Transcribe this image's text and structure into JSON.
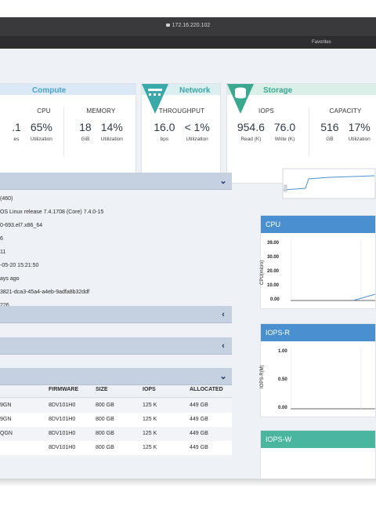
{
  "browser": {
    "url": "172.16.220.102",
    "favorites_label": "Favorites"
  },
  "colors": {
    "compute_accent": "#4aa3c8",
    "network_accent": "#3aa9a9",
    "storage_accent": "#3aa98f",
    "panel_bar": "#c5d1e0",
    "chart_blue": "#4a90d0",
    "chart_green": "#4bb6a0"
  },
  "cards": {
    "compute": {
      "title": "Compute",
      "icon": "chip-icon",
      "cpu": {
        "label": "CPU",
        "partial_value": ".1",
        "partial_unit": "es",
        "value": "65%",
        "unit": "Utilization"
      },
      "memory": {
        "label": "MEMORY",
        "value1": "18",
        "unit1": "GiB",
        "value2": "14%",
        "unit2": "Utilization"
      }
    },
    "network": {
      "title": "Network",
      "icon": "network-icon",
      "throughput": {
        "label": "THROUGHPUT",
        "value1": "16.0",
        "unit1": "bps",
        "value2": "< 1%",
        "unit2": "Utilization"
      }
    },
    "storage": {
      "title": "Storage",
      "icon": "database-icon",
      "iops": {
        "label": "IOPS",
        "value1": "954.6",
        "unit1": "Read (K)",
        "value2": "76.0",
        "unit2": "Write (K)"
      },
      "capacity": {
        "label": "CAPACITY",
        "value1": "516",
        "unit1": "GB",
        "value2": "17%",
        "unit2": "Utilization"
      }
    }
  },
  "info_lines": [
    "(460)",
    "OS Linux release 7.4.1708 (Core) 7.4.0-15",
    "0-693.el7.x86_64",
    "6",
    "11",
    "-05-20 15:21:50",
    "ays ago",
    "3821-dca3-45a4-a4eb-9adfa8b32ddf",
    "226"
  ],
  "drives_table": {
    "headers": [
      "FIRMWARE",
      "SIZE",
      "IOPS",
      "ALLOCATED"
    ],
    "rows": [
      {
        "prefix": "9GN",
        "firmware": "8DV101H0",
        "size": "800 GB",
        "iops": "125 K",
        "allocated": "449 GB"
      },
      {
        "prefix": "9GN",
        "firmware": "8DV101H0",
        "size": "800 GB",
        "iops": "125 K",
        "allocated": "449 GB"
      },
      {
        "prefix": "QGN",
        "firmware": "8DV101H0",
        "size": "800 GB",
        "iops": "125 K",
        "allocated": "449 GB"
      },
      {
        "prefix": "",
        "firmware": "8DV101H0",
        "size": "800 GB",
        "iops": "125 K",
        "allocated": "449 GB"
      }
    ]
  },
  "charts": {
    "cpu": {
      "title": "CPU",
      "ylabel": "CPU(micro)",
      "ticks": [
        "39.00",
        "30.00",
        "20.00",
        "10.00",
        "0.00"
      ]
    },
    "iops_r": {
      "title": "IOPS-R",
      "ylabel": "IOPS-R(M)",
      "ticks": [
        "1.00",
        "0.50",
        "0.00"
      ]
    },
    "iops_w": {
      "title": "IOPS-W"
    }
  }
}
